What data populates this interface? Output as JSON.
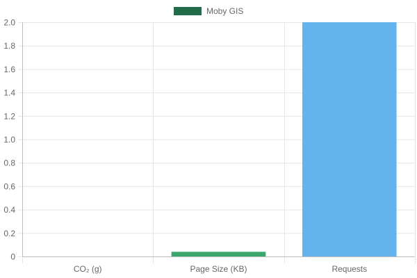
{
  "chart_data": {
    "type": "bar",
    "categories": [
      "CO₂ (g)",
      "Page Size (KB)",
      "Requests"
    ],
    "series": [
      {
        "name": "Moby GIS",
        "values": [
          0,
          0.04,
          2.0
        ],
        "bar_colors": [
          "#2e8b57",
          "#3aa76d",
          "#63b3ed"
        ]
      }
    ],
    "legend": {
      "position": "top",
      "swatch_color": "#1f6b4a"
    },
    "ylim": [
      0,
      2.0
    ],
    "yticks": [
      0,
      0.2,
      0.4,
      0.6,
      0.8,
      1.0,
      1.2,
      1.4,
      1.6,
      1.8,
      2.0
    ],
    "ytick_labels": [
      "0",
      "0.2",
      "0.4",
      "0.6",
      "0.8",
      "1.0",
      "1.2",
      "1.4",
      "1.6",
      "1.8",
      "2.0"
    ],
    "grid": true,
    "colors": {
      "grid": "#e6e6e6",
      "axis": "#bdbdbd",
      "text": "#666666"
    }
  }
}
